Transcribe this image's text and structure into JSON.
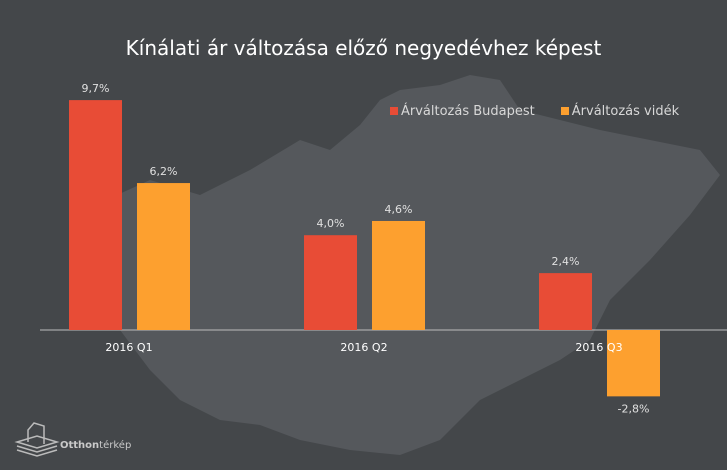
{
  "chart_data": {
    "type": "bar",
    "title": "Kínálati ár változása előző negyedévhez képest",
    "categories": [
      "2016 Q1",
      "2016 Q2",
      "2016 Q3"
    ],
    "series": [
      {
        "name": "Árváltozás Budapest",
        "values": [
          9.7,
          4.0,
          2.4
        ],
        "labels": [
          "9,7%",
          "4,0%",
          "2,4%"
        ],
        "color": "#e84c36"
      },
      {
        "name": "Árváltozás vidék",
        "values": [
          6.2,
          4.6,
          -2.8
        ],
        "labels": [
          "6,2%",
          "4,6%",
          "-2,8%"
        ],
        "color": "#fda02f"
      }
    ],
    "legend": "top-right",
    "grid": false
  },
  "brand": {
    "name_bold": "Otthon",
    "name_rest": "térkép"
  }
}
